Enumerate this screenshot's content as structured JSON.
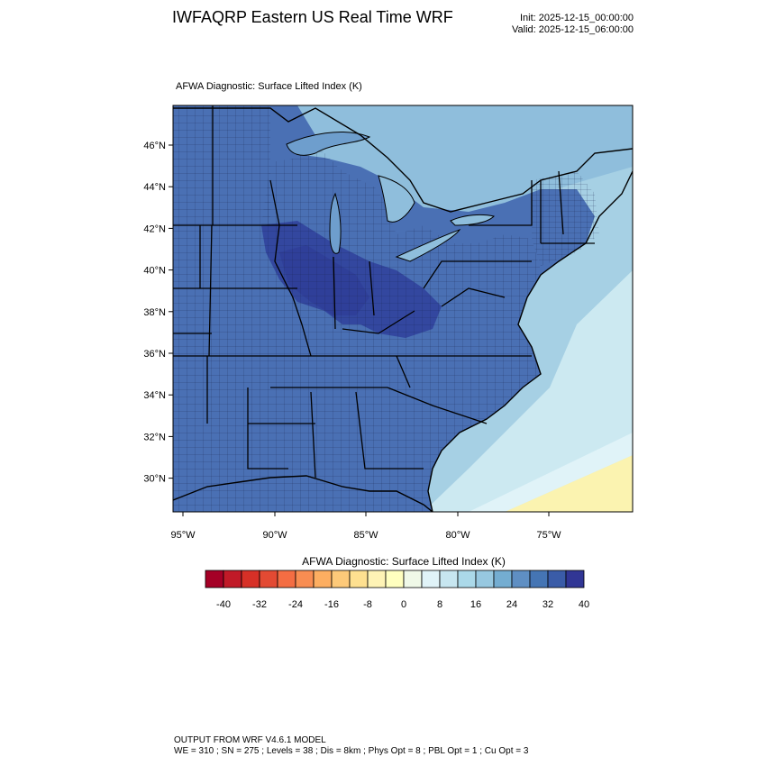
{
  "header": {
    "title": "IWFAQRP Eastern US Real Time WRF",
    "init": "Init: 2025-12-15_00:00:00",
    "valid": "Valid: 2025-12-15_06:00:00"
  },
  "map": {
    "title": "AFWA Diagnostic: Surface Lifted Index   (K)",
    "lat_labels": [
      "46°N",
      "44°N",
      "42°N",
      "40°N",
      "38°N",
      "36°N",
      "34°N",
      "32°N",
      "30°N"
    ],
    "lon_labels": [
      "95°W",
      "90°W",
      "85°W",
      "80°W",
      "75°W"
    ],
    "colors": {
      "deep": "#2f3f99",
      "mid": "#4a70b4",
      "light": "#6e9ecd",
      "pale": "#a6d0e4",
      "ocean": "#cce9f1",
      "warm": "#fbf3b0",
      "border": "#000000"
    }
  },
  "colorbar": {
    "title": "AFWA Diagnostic: Surface Lifted Index  (K)",
    "tick_labels": [
      "-40",
      "-32",
      "-24",
      "-16",
      "-8",
      "0",
      "8",
      "16",
      "24",
      "32",
      "40"
    ],
    "colors": [
      "#a50026",
      "#c11a28",
      "#d73027",
      "#e34a33",
      "#f46d43",
      "#f88d52",
      "#fdae61",
      "#fdc979",
      "#fee090",
      "#fef3b5",
      "#ffffbf",
      "#f0f9e8",
      "#e0f3f8",
      "#c7e6f0",
      "#abd9e9",
      "#97c8e0",
      "#74add1",
      "#5f8fc3",
      "#4575b4",
      "#3a5ca8",
      "#313695"
    ]
  },
  "footer": {
    "line1": "OUTPUT FROM WRF V4.6.1 MODEL",
    "line2": "WE = 310 ; SN = 275 ; Levels = 38 ; Dis = 8km ; Phys Opt = 8 ; PBL Opt = 1 ; Cu Opt = 3"
  }
}
